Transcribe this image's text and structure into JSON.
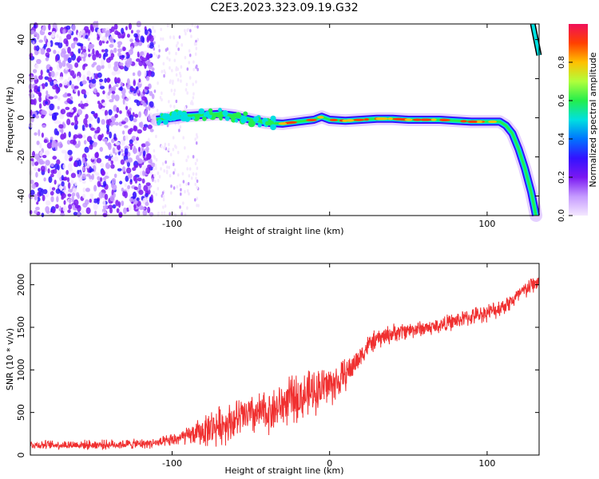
{
  "title": "C2E3.2023.323.09.19.G32",
  "chart_data": [
    {
      "type": "heatmap",
      "xlabel": "Height of straight line (km)",
      "ylabel": "Frequency (Hz)",
      "xlim": [
        -190,
        133
      ],
      "ylim": [
        -50,
        48
      ],
      "x_ticks": [
        -100,
        0,
        100
      ],
      "x_tick_labels": [
        "-100",
        "",
        "100"
      ],
      "y_ticks": [
        -40,
        -20,
        0,
        20,
        40
      ],
      "y_tick_labels": [
        "-40",
        "-20",
        "0",
        "20",
        "40"
      ],
      "grid": false,
      "colorbar": {
        "label": "Normalized spectral amplitude",
        "range": [
          0,
          1
        ],
        "ticks": [
          0.0,
          0.2,
          0.4,
          0.6,
          0.8
        ],
        "tick_labels": [
          "0.0",
          "0.2",
          "0.4",
          "0.6",
          "0.8"
        ],
        "colormap": "rainbow",
        "colors": [
          "#f4e8ff",
          "#c59aff",
          "#7a18f2",
          "#3312ff",
          "#0074ff",
          "#00e0e0",
          "#24ee4c",
          "#b0ff3c",
          "#ffc000",
          "#ff4000",
          "#f0105a"
        ]
      },
      "noise_region_x": [
        -190,
        -112
      ],
      "sparse_noise_x": [
        -112,
        -83
      ],
      "ridge": [
        {
          "x": -110,
          "y": -1
        },
        {
          "x": -100,
          "y": 0
        },
        {
          "x": -90,
          "y": 1
        },
        {
          "x": -80,
          "y": 1.5
        },
        {
          "x": -70,
          "y": 2
        },
        {
          "x": -60,
          "y": 1
        },
        {
          "x": -50,
          "y": -1
        },
        {
          "x": -40,
          "y": -2.5
        },
        {
          "x": -30,
          "y": -3
        },
        {
          "x": -20,
          "y": -2
        },
        {
          "x": -10,
          "y": -1
        },
        {
          "x": -5,
          "y": 0.5
        },
        {
          "x": 0,
          "y": -1
        },
        {
          "x": 10,
          "y": -1.5
        },
        {
          "x": 20,
          "y": -1
        },
        {
          "x": 30,
          "y": -0.5
        },
        {
          "x": 40,
          "y": -0.5
        },
        {
          "x": 50,
          "y": -1
        },
        {
          "x": 60,
          "y": -1
        },
        {
          "x": 70,
          "y": -1
        },
        {
          "x": 80,
          "y": -1.5
        },
        {
          "x": 90,
          "y": -2
        },
        {
          "x": 100,
          "y": -2
        },
        {
          "x": 108,
          "y": -2
        },
        {
          "x": 112,
          "y": -4
        },
        {
          "x": 116,
          "y": -8
        },
        {
          "x": 120,
          "y": -16
        },
        {
          "x": 124,
          "y": -26
        },
        {
          "x": 128,
          "y": -38
        },
        {
          "x": 131,
          "y": -50
        }
      ],
      "upper_tail": [
        {
          "x": 129,
          "y": 48
        },
        {
          "x": 133,
          "y": 32
        }
      ]
    },
    {
      "type": "line",
      "xlabel": "Height of straight line (km)",
      "ylabel": "SNR (10 * v/v)",
      "xlim": [
        -190,
        133
      ],
      "ylim": [
        0,
        2250
      ],
      "x_ticks": [
        -100,
        0,
        100
      ],
      "x_tick_labels": [
        "-100",
        "0",
        "100"
      ],
      "y_ticks": [
        0,
        500,
        1000,
        1500,
        2000
      ],
      "y_tick_labels": [
        "0",
        "500",
        "1000",
        "1500",
        "2000"
      ],
      "grid": false,
      "series_color": "#f03030",
      "mean_curve": [
        {
          "x": -190,
          "y": 120
        },
        {
          "x": -150,
          "y": 120
        },
        {
          "x": -120,
          "y": 130
        },
        {
          "x": -105,
          "y": 150
        },
        {
          "x": -95,
          "y": 200
        },
        {
          "x": -85,
          "y": 250
        },
        {
          "x": -75,
          "y": 320
        },
        {
          "x": -65,
          "y": 380
        },
        {
          "x": -55,
          "y": 450
        },
        {
          "x": -45,
          "y": 480
        },
        {
          "x": -35,
          "y": 530
        },
        {
          "x": -25,
          "y": 650
        },
        {
          "x": -15,
          "y": 700
        },
        {
          "x": -5,
          "y": 800
        },
        {
          "x": 5,
          "y": 850
        },
        {
          "x": 15,
          "y": 1050
        },
        {
          "x": 25,
          "y": 1300
        },
        {
          "x": 35,
          "y": 1400
        },
        {
          "x": 45,
          "y": 1450
        },
        {
          "x": 55,
          "y": 1480
        },
        {
          "x": 65,
          "y": 1500
        },
        {
          "x": 75,
          "y": 1550
        },
        {
          "x": 85,
          "y": 1600
        },
        {
          "x": 95,
          "y": 1650
        },
        {
          "x": 105,
          "y": 1700
        },
        {
          "x": 115,
          "y": 1800
        },
        {
          "x": 125,
          "y": 1950
        },
        {
          "x": 133,
          "y": 2050
        }
      ],
      "noise_amplitude": [
        {
          "x": -190,
          "y": 60
        },
        {
          "x": -110,
          "y": 70
        },
        {
          "x": -90,
          "y": 120
        },
        {
          "x": -75,
          "y": 260
        },
        {
          "x": -40,
          "y": 300
        },
        {
          "x": -20,
          "y": 330
        },
        {
          "x": 0,
          "y": 300
        },
        {
          "x": 20,
          "y": 150
        },
        {
          "x": 60,
          "y": 110
        },
        {
          "x": 133,
          "y": 130
        }
      ]
    }
  ]
}
